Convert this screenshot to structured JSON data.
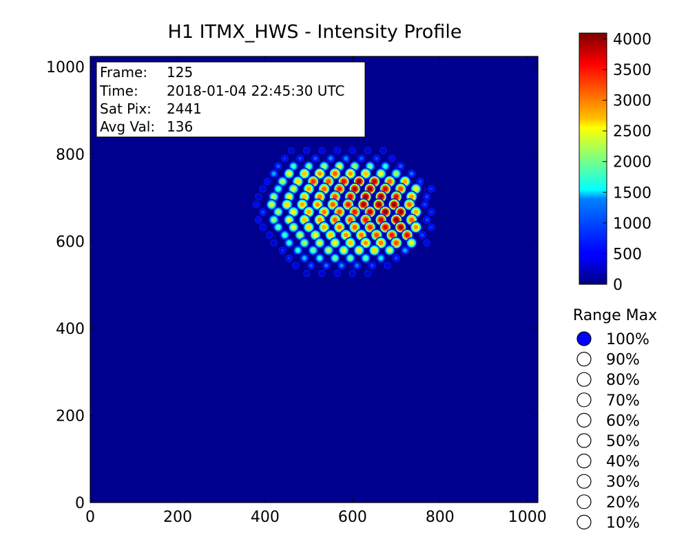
{
  "window": {
    "title": "H1 ITMX_HWS - Intensity Profile"
  },
  "info_box": {
    "frame_label": "Frame:",
    "frame_value": "125",
    "time_label": "Time:",
    "time_value": "2018-01-04 22:45:30 UTC",
    "satpix_label": "Sat Pix:",
    "satpix_value": "2441",
    "avgval_label": "Avg Val:",
    "avgval_value": "136"
  },
  "range_max": {
    "title": "Range Max",
    "selected": "100%",
    "options": [
      "100%",
      "90%",
      "80%",
      "70%",
      "60%",
      "50%",
      "40%",
      "30%",
      "20%",
      "10%"
    ]
  },
  "colors": {
    "background": "#00008f",
    "selected_radio": "#0000ff",
    "colormap": "jet"
  },
  "chart_data": {
    "type": "heatmap",
    "title": "H1 ITMX_HWS - Intensity Profile",
    "xlabel": "",
    "ylabel": "",
    "xlim": [
      0,
      1024
    ],
    "ylim": [
      0,
      1024
    ],
    "x_ticks": [
      "0",
      "200",
      "400",
      "600",
      "800",
      "1000"
    ],
    "y_ticks": [
      "0",
      "200",
      "400",
      "600",
      "800",
      "1000"
    ],
    "grid": false,
    "colorbar": {
      "min": 0,
      "max": 4095,
      "ticks": [
        "0",
        "500",
        "1000",
        "1500",
        "2000",
        "2500",
        "3000",
        "3500",
        "4000"
      ]
    },
    "pattern": {
      "description": "grid of Hartmann wavefront sensor spots",
      "rows": [
        {
          "y": 808,
          "xs": [
            460,
            495,
            530,
            565,
            600,
            635,
            670
          ],
          "v": [
            400,
            500,
            500,
            550,
            500,
            450,
            400
          ]
        },
        {
          "y": 790,
          "xs": [
            445,
            480,
            515,
            550,
            585,
            620,
            655,
            690
          ],
          "v": [
            700,
            800,
            900,
            1100,
            1100,
            900,
            800,
            600
          ]
        },
        {
          "y": 772,
          "xs": [
            430,
            465,
            500,
            535,
            570,
            605,
            640,
            675,
            710
          ],
          "v": [
            900,
            1800,
            2000,
            2200,
            2400,
            2200,
            2000,
            1700,
            900
          ]
        },
        {
          "y": 755,
          "xs": [
            420,
            455,
            490,
            525,
            560,
            595,
            630,
            665,
            700,
            735
          ],
          "v": [
            1200,
            2500,
            2800,
            3000,
            3200,
            3000,
            2800,
            2500,
            2200,
            1000
          ]
        },
        {
          "y": 737,
          "xs": [
            405,
            440,
            475,
            510,
            545,
            580,
            615,
            650,
            685,
            720,
            755
          ],
          "v": [
            600,
            2200,
            2700,
            3400,
            3300,
            3600,
            4000,
            3800,
            3200,
            2900,
            800
          ]
        },
        {
          "y": 720,
          "xs": [
            395,
            430,
            465,
            500,
            535,
            570,
            605,
            640,
            675,
            710,
            745,
            780
          ],
          "v": [
            500,
            1800,
            2400,
            2900,
            3200,
            3500,
            3900,
            4000,
            3700,
            3300,
            2600,
            700
          ]
        },
        {
          "y": 702,
          "xs": [
            385,
            420,
            455,
            490,
            525,
            560,
            595,
            630,
            665,
            700,
            735,
            770
          ],
          "v": [
            400,
            2200,
            2500,
            2800,
            3100,
            3300,
            3700,
            4000,
            4000,
            3600,
            3000,
            800
          ]
        },
        {
          "y": 684,
          "xs": [
            380,
            415,
            450,
            485,
            520,
            555,
            590,
            625,
            660,
            695,
            730,
            765
          ],
          "v": [
            600,
            2400,
            2700,
            2900,
            3000,
            3200,
            3500,
            3900,
            4000,
            4000,
            3200,
            800
          ]
        },
        {
          "y": 667,
          "xs": [
            395,
            430,
            465,
            500,
            535,
            570,
            605,
            640,
            675,
            710,
            745,
            780
          ],
          "v": [
            800,
            2200,
            2600,
            2900,
            3100,
            3300,
            3500,
            3800,
            4000,
            4000,
            2900,
            700
          ]
        },
        {
          "y": 649,
          "xs": [
            385,
            420,
            455,
            490,
            525,
            560,
            595,
            630,
            665,
            700,
            735,
            770
          ],
          "v": [
            600,
            2100,
            2500,
            2800,
            3000,
            3200,
            3300,
            3500,
            3700,
            4000,
            3200,
            800
          ]
        },
        {
          "y": 632,
          "xs": [
            395,
            430,
            465,
            500,
            535,
            570,
            605,
            640,
            675,
            710,
            745,
            780
          ],
          "v": [
            500,
            1900,
            2400,
            2700,
            2900,
            3100,
            3200,
            3400,
            3700,
            3900,
            3000,
            700
          ]
        },
        {
          "y": 614,
          "xs": [
            410,
            445,
            480,
            515,
            550,
            585,
            620,
            655,
            690,
            725,
            760
          ],
          "v": [
            500,
            1800,
            2300,
            2600,
            2800,
            3000,
            3100,
            3300,
            3500,
            3600,
            800
          ]
        },
        {
          "y": 596,
          "xs": [
            420,
            455,
            490,
            525,
            560,
            595,
            630,
            665,
            700,
            735,
            770
          ],
          "v": [
            400,
            1700,
            2200,
            2400,
            2600,
            2800,
            3000,
            3100,
            3300,
            2500,
            600
          ]
        },
        {
          "y": 579,
          "xs": [
            440,
            475,
            510,
            545,
            580,
            615,
            650,
            685,
            720
          ],
          "v": [
            700,
            1700,
            2000,
            2300,
            2500,
            2600,
            2700,
            2400,
            1200
          ]
        },
        {
          "y": 561,
          "xs": [
            455,
            490,
            525,
            560,
            595,
            630,
            665,
            700
          ],
          "v": [
            700,
            1300,
            1700,
            2000,
            2000,
            1900,
            1500,
            800
          ]
        },
        {
          "y": 544,
          "xs": [
            470,
            505,
            540,
            575,
            610,
            645,
            680
          ],
          "v": [
            500,
            900,
            1000,
            1100,
            1000,
            800,
            500
          ]
        },
        {
          "y": 526,
          "xs": [
            495,
            530,
            565,
            600,
            635
          ],
          "v": [
            350,
            400,
            420,
            380,
            300
          ]
        }
      ]
    }
  }
}
